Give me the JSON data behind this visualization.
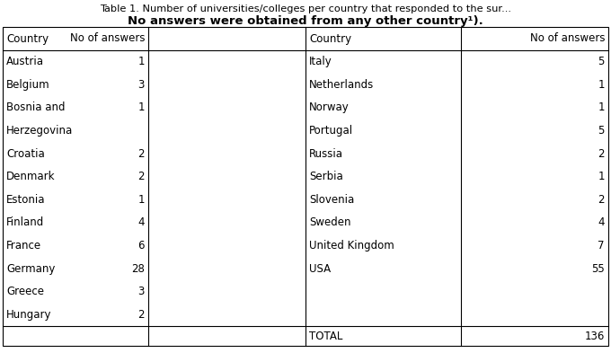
{
  "title_line1": "Table 1. Number of universities/colleges per country that responded to the sur...",
  "title_line2": "No answers were obtained from any other country¹).",
  "header_country": "Country",
  "header_answers": "No of answers",
  "left_rows": [
    [
      "Austria",
      "1"
    ],
    [
      "Belgium",
      "3"
    ],
    [
      "Bosnia and",
      "1"
    ],
    [
      "Herzegovina",
      ""
    ],
    [
      "Croatia",
      "2"
    ],
    [
      "Denmark",
      "2"
    ],
    [
      "Estonia",
      "1"
    ],
    [
      "Finland",
      "4"
    ],
    [
      "France",
      "6"
    ],
    [
      "Germany",
      "28"
    ],
    [
      "Greece",
      "3"
    ],
    [
      "Hungary",
      "2"
    ]
  ],
  "right_rows": [
    [
      "Italy",
      "5"
    ],
    [
      "Netherlands",
      "1"
    ],
    [
      "Norway",
      "1"
    ],
    [
      "Portugal",
      "5"
    ],
    [
      "Russia",
      "2"
    ],
    [
      "Serbia",
      "1"
    ],
    [
      "Slovenia",
      "2"
    ],
    [
      "Sweden",
      "4"
    ],
    [
      "United Kingdom",
      "7"
    ],
    [
      "USA",
      "55"
    ],
    [
      "",
      ""
    ],
    [
      "",
      ""
    ]
  ],
  "total_label": "TOTAL",
  "total_value": "136",
  "bg_color": "#ffffff",
  "border_color": "#000000",
  "font_size": 8.5,
  "title_font_size": 8.2,
  "title2_font_size": 9.5
}
